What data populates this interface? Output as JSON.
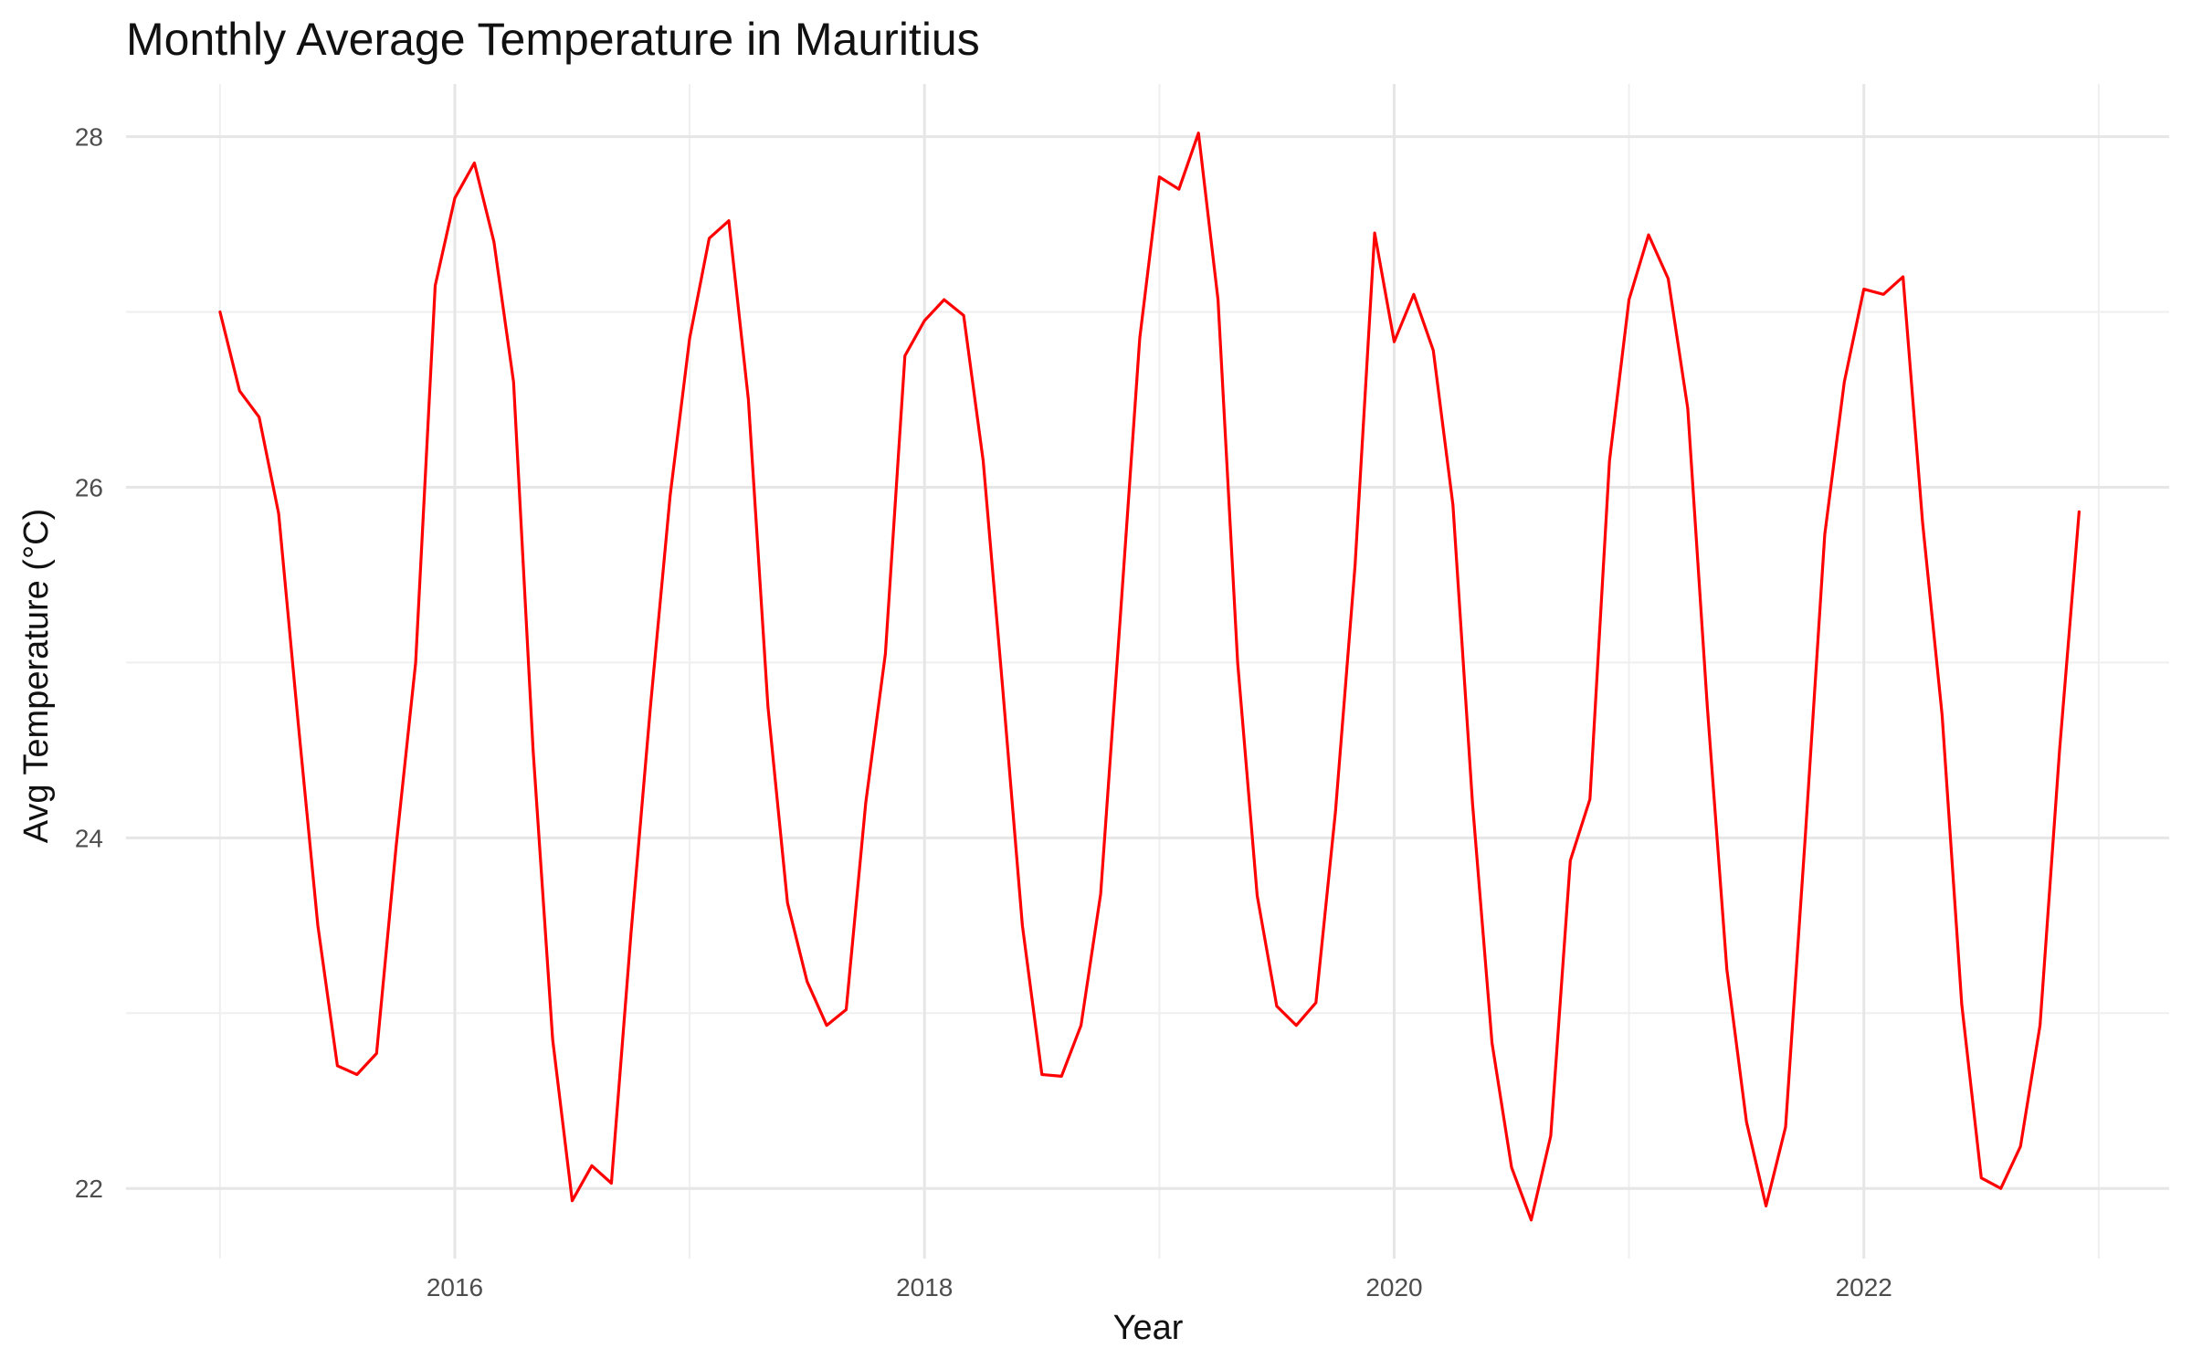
{
  "chart_data": {
    "type": "line",
    "title": "Monthly Average Temperature in Mauritius",
    "xlabel": "Year",
    "ylabel": "Avg Temperature (°C)",
    "xlim": [
      2014.6,
      2023.3
    ],
    "ylim": [
      21.6,
      28.3
    ],
    "x_ticks": [
      2016,
      2018,
      2020,
      2022
    ],
    "x_tick_labels": [
      "2016",
      "2018",
      "2020",
      "2022"
    ],
    "y_ticks": [
      22,
      24,
      26,
      28
    ],
    "y_tick_labels": [
      "22",
      "24",
      "26",
      "28"
    ],
    "grid": true,
    "line_color": "#ff0000",
    "series": [
      {
        "x_start": "2015-01",
        "frequency": "monthly",
        "values": [
          27.0,
          26.55,
          26.4,
          25.85,
          24.65,
          23.5,
          22.7,
          22.65,
          22.77,
          23.95,
          25.0,
          27.15,
          27.65,
          27.85,
          27.4,
          26.6,
          24.5,
          22.85,
          21.93,
          22.13,
          22.03,
          23.45,
          24.75,
          25.95,
          26.85,
          27.42,
          27.52,
          26.5,
          24.75,
          23.63,
          23.18,
          22.93,
          23.02,
          24.2,
          25.05,
          26.75,
          26.95,
          27.07,
          26.98,
          26.15,
          24.85,
          23.5,
          22.65,
          22.64,
          22.93,
          23.68,
          25.25,
          26.85,
          27.77,
          27.7,
          28.02,
          27.07,
          25.0,
          23.67,
          23.04,
          22.93,
          23.06,
          24.15,
          25.55,
          27.45,
          26.83,
          27.1,
          26.78,
          25.9,
          24.2,
          22.83,
          22.12,
          21.82,
          22.3,
          23.87,
          24.22,
          26.15,
          27.07,
          27.44,
          27.19,
          26.45,
          24.75,
          23.25,
          22.38,
          21.9,
          22.35,
          24.0,
          25.73,
          26.6,
          27.13,
          27.1,
          27.2,
          25.8,
          24.7,
          23.05,
          22.06,
          22.0,
          22.24,
          22.93,
          24.5,
          25.86
        ]
      }
    ]
  }
}
